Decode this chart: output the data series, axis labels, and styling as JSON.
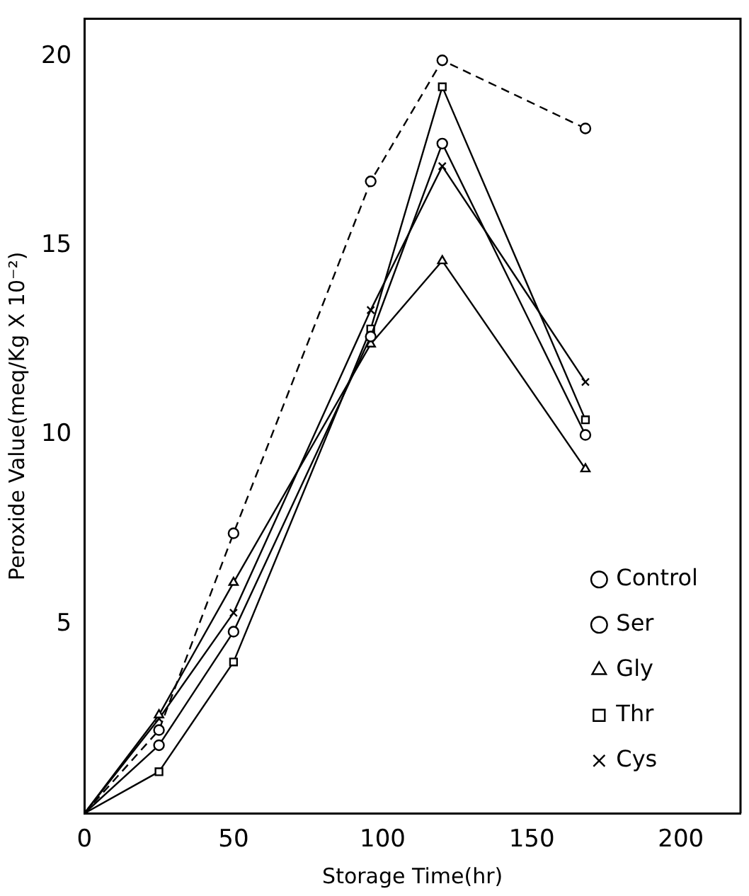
{
  "chart_data": {
    "type": "line",
    "xlabel": "Storage Time(hr)",
    "ylabel": "Peroxide Value(meq/Kg X 10⁻²)",
    "x": [
      0,
      25,
      50,
      96,
      120,
      168
    ],
    "xlim": [
      0,
      220
    ],
    "xticks": [
      0,
      50,
      100,
      150,
      200
    ],
    "ylim": [
      0,
      21
    ],
    "yticks": [
      5,
      10,
      15,
      20
    ],
    "grid": false,
    "legend": "bottom right",
    "series": [
      {
        "name": "Control",
        "color": "#000000",
        "marker": "circle",
        "line_style": "dashed",
        "values": [
          0,
          2.2,
          7.4,
          16.7,
          19.9,
          18.1
        ]
      },
      {
        "name": "Ser",
        "color": "#000000",
        "marker": "circle",
        "line_style": "solid",
        "values": [
          0,
          1.8,
          4.8,
          12.6,
          17.7,
          10.0
        ]
      },
      {
        "name": "Gly",
        "color": "#000000",
        "marker": "triangle",
        "line_style": "solid",
        "values": [
          0,
          2.6,
          6.1,
          12.4,
          14.6,
          9.1
        ]
      },
      {
        "name": "Thr",
        "color": "#000000",
        "marker": "square",
        "line_style": "solid",
        "values": [
          0,
          1.1,
          4.0,
          12.8,
          19.2,
          10.4
        ]
      },
      {
        "name": "Cys",
        "color": "#000000",
        "marker": "cross",
        "line_style": "solid",
        "values": [
          0,
          2.5,
          5.3,
          13.3,
          17.1,
          11.4
        ]
      }
    ]
  }
}
